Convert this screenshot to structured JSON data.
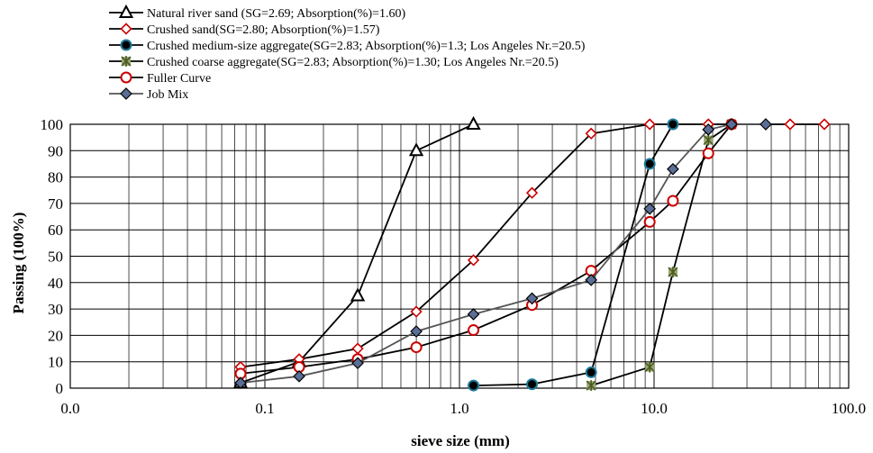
{
  "chart_data": {
    "type": "line",
    "xlabel": "sieve size (mm)",
    "ylabel": "Passing (100%)",
    "x_scale": "log",
    "xlim": [
      0.01,
      100
    ],
    "ylim": [
      0,
      100
    ],
    "x_tick_labels": [
      "0.0",
      "0.1",
      "1.0",
      "10.0",
      "100.0"
    ],
    "y_tick_labels": [
      "0",
      "10",
      "20",
      "30",
      "40",
      "50",
      "60",
      "70",
      "80",
      "90",
      "100"
    ],
    "grid": true,
    "legend_position": "top-left",
    "series": [
      {
        "name": "Natural river sand (SG=2.69; Absorption(%)=1.60)",
        "marker": "triangle",
        "line_color": "#000000",
        "marker_fill": "#ffffff",
        "marker_stroke": "#000000",
        "x": [
          0.075,
          0.15,
          0.3,
          0.6,
          1.18
        ],
        "y": [
          2,
          10,
          35,
          90,
          100
        ]
      },
      {
        "name": "Crushed sand(SG=2.80; Absorption(%)=1.57)",
        "marker": "diamond",
        "line_color": "#000000",
        "marker_fill": "#ffffff",
        "marker_stroke": "#cc0000",
        "x": [
          0.075,
          0.15,
          0.3,
          0.6,
          1.18,
          2.36,
          4.75,
          9.5,
          19,
          25,
          37.5,
          50,
          75
        ],
        "y": [
          8,
          11,
          15,
          29,
          48.5,
          74,
          96.5,
          100,
          100,
          100,
          100,
          100,
          100
        ]
      },
      {
        "name": "Crushed medium-size aggregate(SG=2.83; Absorption(%)=1.3; Los Angeles Nr.=20.5)",
        "marker": "circle",
        "line_color": "#000000",
        "marker_fill": "#000000",
        "marker_stroke": "#1f7a9a",
        "x": [
          1.18,
          2.36,
          4.75,
          9.5,
          12.5
        ],
        "y": [
          1,
          1.5,
          6,
          85,
          100
        ]
      },
      {
        "name": "Crushed coarse aggregate(SG=2.83; Absorption(%)=1.30; Los Angeles Nr.=20.5)",
        "marker": "star",
        "line_color": "#000000",
        "marker_fill": "#9aa86a",
        "marker_stroke": "#4a5a2a",
        "x": [
          4.75,
          9.5,
          12.5,
          19,
          25
        ],
        "y": [
          1,
          8,
          44,
          94,
          100
        ]
      },
      {
        "name": "Fuller Curve",
        "marker": "circle-open",
        "line_color": "#000000",
        "marker_fill": "#ffffff",
        "marker_stroke": "#cc0000",
        "x": [
          0.075,
          0.15,
          0.3,
          0.6,
          1.18,
          2.36,
          4.75,
          9.5,
          12.5,
          19,
          25
        ],
        "y": [
          5.5,
          8,
          11,
          15.5,
          22,
          31.5,
          44.5,
          63,
          71,
          89,
          100
        ]
      },
      {
        "name": "Job Mix",
        "marker": "diamond-filled",
        "line_color": "#555555",
        "marker_fill": "#5a6e96",
        "marker_stroke": "#000000",
        "x": [
          0.075,
          0.15,
          0.3,
          0.6,
          1.18,
          2.36,
          4.75,
          9.5,
          12.5,
          19,
          25,
          37.5
        ],
        "y": [
          2,
          4.5,
          9.5,
          21.5,
          28,
          34,
          41,
          68,
          83,
          98,
          100,
          100
        ]
      }
    ]
  }
}
